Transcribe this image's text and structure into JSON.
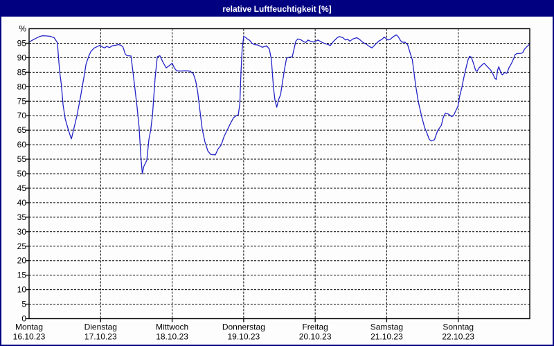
{
  "window": {
    "title": "relative Luftfeuchtigkeit [%]",
    "title_bar_color": "#000080",
    "background_color": "#fdfdfd"
  },
  "chart_data": {
    "type": "line",
    "title": "relative Luftfeuchtigkeit [%]",
    "y_unit_label": "%",
    "ylim": [
      0,
      100
    ],
    "yticks": [
      0,
      5,
      10,
      15,
      20,
      25,
      30,
      35,
      40,
      45,
      50,
      55,
      60,
      65,
      70,
      75,
      80,
      85,
      90,
      95
    ],
    "xlim_hours": [
      0,
      168
    ],
    "grid": "dashed",
    "legend": "none",
    "line_color": "#2323c8",
    "days": [
      {
        "label": "Montag",
        "date": "16.10.23"
      },
      {
        "label": "Dienstag",
        "date": "17.10.23"
      },
      {
        "label": "Mittwoch",
        "date": "18.10.23"
      },
      {
        "label": "Donnerstag",
        "date": "19.10.23"
      },
      {
        "label": "Freitag",
        "date": "20.10.23"
      },
      {
        "label": "Samstag",
        "date": "21.10.23"
      },
      {
        "label": "Sonntag",
        "date": "22.10.23"
      }
    ],
    "series": [
      {
        "name": "relative Luftfeuchtigkeit",
        "points_hour_percent": [
          [
            0,
            95.4
          ],
          [
            1,
            96.0
          ],
          [
            2.5,
            96.8
          ],
          [
            3.5,
            97.3
          ],
          [
            4.6,
            97.6
          ],
          [
            6,
            97.5
          ],
          [
            7,
            97.4
          ],
          [
            8.4,
            96.9
          ],
          [
            9.1,
            95.8
          ],
          [
            9.5,
            95.2
          ],
          [
            9.9,
            89.7
          ],
          [
            10.3,
            84.9
          ],
          [
            10.8,
            80.9
          ],
          [
            11.4,
            73.7
          ],
          [
            12.1,
            69.0
          ],
          [
            13.0,
            65.8
          ],
          [
            13.7,
            63.4
          ],
          [
            14.2,
            62.0
          ],
          [
            14.9,
            65.0
          ],
          [
            16.0,
            69.8
          ],
          [
            17.2,
            76.1
          ],
          [
            18.4,
            83.3
          ],
          [
            19.1,
            87.7
          ],
          [
            20.0,
            90.5
          ],
          [
            20.7,
            92.1
          ],
          [
            21.8,
            93.3
          ],
          [
            23.0,
            93.9
          ],
          [
            23.8,
            94.3
          ],
          [
            24.6,
            93.7
          ],
          [
            25.3,
            93.4
          ],
          [
            26.1,
            93.9
          ],
          [
            27.0,
            93.5
          ],
          [
            27.9,
            94.1
          ],
          [
            29.0,
            94.3
          ],
          [
            30.0,
            94.5
          ],
          [
            30.8,
            94.3
          ],
          [
            31.5,
            93.7
          ],
          [
            32.3,
            91.2
          ],
          [
            32.9,
            90.7
          ],
          [
            34.2,
            90.6
          ],
          [
            35.3,
            81.3
          ],
          [
            36.2,
            73.3
          ],
          [
            36.9,
            66.2
          ],
          [
            37.5,
            56.0
          ],
          [
            38.0,
            50.0
          ],
          [
            38.5,
            52.5
          ],
          [
            39.5,
            54.6
          ],
          [
            40.2,
            61.8
          ],
          [
            40.8,
            65.0
          ],
          [
            41.4,
            70.2
          ],
          [
            42.3,
            83.0
          ],
          [
            43.0,
            90.3
          ],
          [
            43.9,
            90.7
          ],
          [
            44.9,
            88.5
          ],
          [
            46.0,
            86.5
          ],
          [
            47.2,
            87.4
          ],
          [
            48.0,
            88.1
          ],
          [
            48.8,
            86.4
          ],
          [
            49.5,
            85.5
          ],
          [
            50.7,
            85.4
          ],
          [
            52.5,
            85.5
          ],
          [
            53.9,
            85.4
          ],
          [
            55.1,
            84.5
          ],
          [
            55.9,
            82.0
          ],
          [
            56.6,
            78.0
          ],
          [
            57.3,
            72.0
          ],
          [
            58.1,
            65.4
          ],
          [
            59.0,
            61.0
          ],
          [
            60.0,
            57.8
          ],
          [
            61.0,
            56.6
          ],
          [
            62.5,
            56.5
          ],
          [
            63.4,
            58.5
          ],
          [
            64.4,
            59.8
          ],
          [
            65.5,
            63.0
          ],
          [
            66.7,
            65.5
          ],
          [
            67.4,
            67.0
          ],
          [
            68.6,
            69.3
          ],
          [
            69.5,
            70.0
          ],
          [
            70.2,
            70.3
          ],
          [
            70.7,
            74.0
          ],
          [
            71.1,
            85.0
          ],
          [
            71.5,
            93.0
          ],
          [
            72.0,
            97.3
          ],
          [
            72.6,
            97.1
          ],
          [
            73.2,
            96.5
          ],
          [
            74.0,
            96.0
          ],
          [
            74.8,
            95.0
          ],
          [
            75.6,
            94.5
          ],
          [
            76.7,
            94.4
          ],
          [
            78.3,
            93.6
          ],
          [
            79.7,
            94.1
          ],
          [
            80.6,
            93.0
          ],
          [
            81.3,
            89.3
          ],
          [
            82.0,
            79.7
          ],
          [
            82.5,
            75.5
          ],
          [
            83.1,
            72.9
          ],
          [
            83.7,
            75.5
          ],
          [
            84.4,
            77.3
          ],
          [
            85.1,
            82.0
          ],
          [
            85.8,
            86.5
          ],
          [
            86.4,
            89.8
          ],
          [
            87.2,
            90.2
          ],
          [
            88.3,
            90.3
          ],
          [
            89.0,
            93.4
          ],
          [
            89.5,
            95.7
          ],
          [
            90.2,
            96.5
          ],
          [
            91.3,
            96.1
          ],
          [
            92.2,
            95.5
          ],
          [
            92.9,
            95.3
          ],
          [
            93.6,
            96.1
          ],
          [
            94.6,
            95.6
          ],
          [
            95.4,
            95.4
          ],
          [
            96.0,
            95.6
          ],
          [
            96.9,
            96.1
          ],
          [
            98.3,
            95.3
          ],
          [
            99.2,
            94.9
          ],
          [
            100.4,
            94.5
          ],
          [
            101.1,
            94.2
          ],
          [
            102.2,
            95.7
          ],
          [
            103.4,
            96.9
          ],
          [
            104.1,
            97.3
          ],
          [
            105.3,
            96.9
          ],
          [
            106.2,
            96.1
          ],
          [
            106.9,
            96.4
          ],
          [
            107.6,
            95.7
          ],
          [
            108.7,
            96.5
          ],
          [
            109.9,
            96.9
          ],
          [
            110.8,
            96.4
          ],
          [
            112.0,
            95.3
          ],
          [
            113.2,
            94.6
          ],
          [
            114.3,
            93.8
          ],
          [
            115.1,
            93.4
          ],
          [
            116.2,
            94.6
          ],
          [
            117.3,
            95.7
          ],
          [
            118.5,
            96.4
          ],
          [
            119.1,
            97.1
          ],
          [
            119.8,
            96.6
          ],
          [
            120.4,
            96.1
          ],
          [
            121.1,
            96.3
          ],
          [
            122.0,
            97.1
          ],
          [
            123.2,
            97.9
          ],
          [
            123.9,
            97.2
          ],
          [
            124.6,
            96.0
          ],
          [
            125.1,
            95.4
          ],
          [
            126.2,
            95.3
          ],
          [
            127.0,
            94.5
          ],
          [
            127.9,
            91.5
          ],
          [
            128.6,
            89.3
          ],
          [
            129.7,
            80.5
          ],
          [
            130.6,
            74.9
          ],
          [
            131.8,
            69.4
          ],
          [
            132.7,
            66.0
          ],
          [
            133.6,
            63.7
          ],
          [
            134.3,
            61.8
          ],
          [
            135.0,
            61.3
          ],
          [
            136.0,
            61.7
          ],
          [
            137.1,
            64.9
          ],
          [
            138.3,
            66.6
          ],
          [
            139.0,
            69.5
          ],
          [
            139.7,
            70.9
          ],
          [
            140.6,
            70.6
          ],
          [
            141.3,
            70.1
          ],
          [
            141.8,
            69.7
          ],
          [
            142.4,
            70.0
          ],
          [
            143.1,
            71.5
          ],
          [
            143.9,
            73.3
          ],
          [
            144.5,
            76.9
          ],
          [
            145.2,
            79.7
          ],
          [
            145.9,
            83.3
          ],
          [
            146.8,
            87.3
          ],
          [
            147.3,
            89.3
          ],
          [
            147.8,
            90.5
          ],
          [
            148.4,
            90.2
          ],
          [
            149.1,
            88.1
          ],
          [
            149.8,
            85.7
          ],
          [
            150.3,
            85.3
          ],
          [
            151.0,
            86.5
          ],
          [
            152.2,
            87.7
          ],
          [
            152.7,
            88.1
          ],
          [
            153.8,
            86.9
          ],
          [
            154.9,
            85.7
          ],
          [
            155.6,
            84.5
          ],
          [
            156.3,
            82.9
          ],
          [
            156.8,
            82.5
          ],
          [
            157.2,
            85.7
          ],
          [
            157.6,
            86.9
          ],
          [
            158.4,
            84.5
          ],
          [
            158.8,
            84.1
          ],
          [
            159.6,
            84.9
          ],
          [
            160.3,
            84.6
          ],
          [
            161.0,
            86.5
          ],
          [
            161.9,
            88.1
          ],
          [
            162.6,
            89.7
          ],
          [
            163.1,
            91.1
          ],
          [
            163.7,
            91.4
          ],
          [
            165.0,
            91.5
          ],
          [
            165.6,
            91.7
          ],
          [
            166.2,
            92.9
          ],
          [
            166.9,
            93.7
          ],
          [
            167.8,
            94.5
          ]
        ]
      }
    ]
  }
}
